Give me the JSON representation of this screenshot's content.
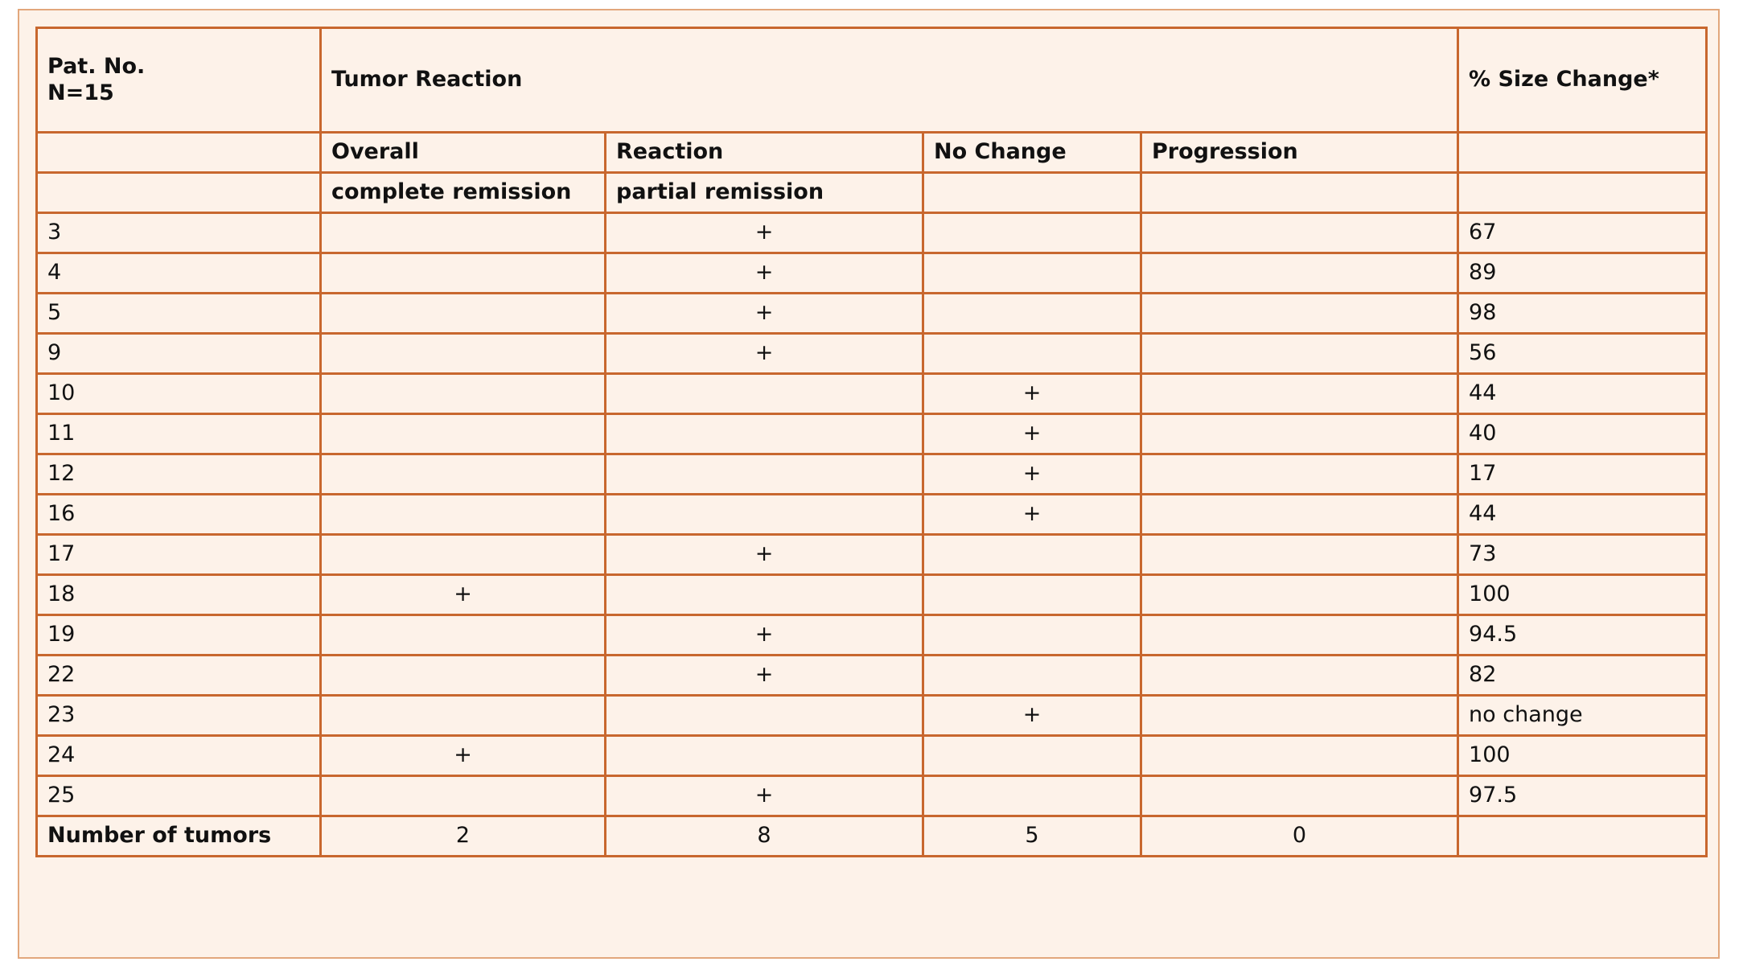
{
  "table": {
    "header1": {
      "patient": [
        "Pat. No.",
        "N=15"
      ],
      "tumor_reaction": "Tumor Reaction",
      "size_change": "% Size Change*"
    },
    "header2": {
      "overall": "Overall",
      "reaction": "Reaction",
      "no_change": "No Change",
      "progression": "Progression"
    },
    "header3": {
      "complete_remission": "complete remission",
      "partial_remission": "partial remission"
    },
    "rows": [
      {
        "pat": "3",
        "cr": "",
        "pr": "+",
        "nc": "",
        "prog": "",
        "size": "67"
      },
      {
        "pat": "4",
        "cr": "",
        "pr": "+",
        "nc": "",
        "prog": "",
        "size": "89"
      },
      {
        "pat": "5",
        "cr": "",
        "pr": "+",
        "nc": "",
        "prog": "",
        "size": "98"
      },
      {
        "pat": "9",
        "cr": "",
        "pr": "+",
        "nc": "",
        "prog": "",
        "size": "56"
      },
      {
        "pat": "10",
        "cr": "",
        "pr": "",
        "nc": "+",
        "prog": "",
        "size": "44"
      },
      {
        "pat": "11",
        "cr": "",
        "pr": "",
        "nc": "+",
        "prog": "",
        "size": "40"
      },
      {
        "pat": "12",
        "cr": "",
        "pr": "",
        "nc": "+",
        "prog": "",
        "size": "17"
      },
      {
        "pat": "16",
        "cr": "",
        "pr": "",
        "nc": "+",
        "prog": "",
        "size": "44"
      },
      {
        "pat": "17",
        "cr": "",
        "pr": "+",
        "nc": "",
        "prog": "",
        "size": "73"
      },
      {
        "pat": "18",
        "cr": "+",
        "pr": "",
        "nc": "",
        "prog": "",
        "size": "100"
      },
      {
        "pat": "19",
        "cr": "",
        "pr": "+",
        "nc": "",
        "prog": "",
        "size": "94.5"
      },
      {
        "pat": "22",
        "cr": "",
        "pr": "+",
        "nc": "",
        "prog": "",
        "size": "82"
      },
      {
        "pat": "23",
        "cr": "",
        "pr": "",
        "nc": "+",
        "prog": "",
        "size": "no change"
      },
      {
        "pat": "24",
        "cr": "+",
        "pr": "",
        "nc": "",
        "prog": "",
        "size": "100"
      },
      {
        "pat": "25",
        "cr": "",
        "pr": "+",
        "nc": "",
        "prog": "",
        "size": "97.5"
      }
    ],
    "total": {
      "label": "Number of tumors",
      "cr": "2",
      "pr": "8",
      "nc": "5",
      "prog": "0",
      "size": ""
    }
  }
}
